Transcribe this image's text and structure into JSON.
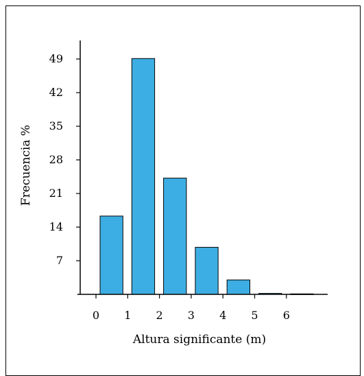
{
  "chart_data": {
    "type": "bar",
    "title": "",
    "xlabel": "Altura significante (m)",
    "ylabel": "Frecuencia %",
    "x_ticks": [
      "0",
      "1",
      "2",
      "3",
      "4",
      "5",
      "6"
    ],
    "y_ticks": [
      "7",
      "14",
      "21",
      "28",
      "35",
      "42",
      "49"
    ],
    "xlim": [
      -0.5,
      7.3
    ],
    "ylim": [
      0,
      54
    ],
    "bins": [
      {
        "from": 0,
        "to": 1,
        "value": 16.3
      },
      {
        "from": 1,
        "to": 2,
        "value": 49.1
      },
      {
        "from": 2,
        "to": 3,
        "value": 24.2
      },
      {
        "from": 3,
        "to": 4,
        "value": 9.8
      },
      {
        "from": 4,
        "to": 5,
        "value": 3.0
      },
      {
        "from": 5,
        "to": 6,
        "value": 0.2
      },
      {
        "from": 6,
        "to": 7,
        "value": 0.1
      }
    ],
    "bar_color": "#3daee3",
    "grid": false,
    "legend": "none"
  }
}
